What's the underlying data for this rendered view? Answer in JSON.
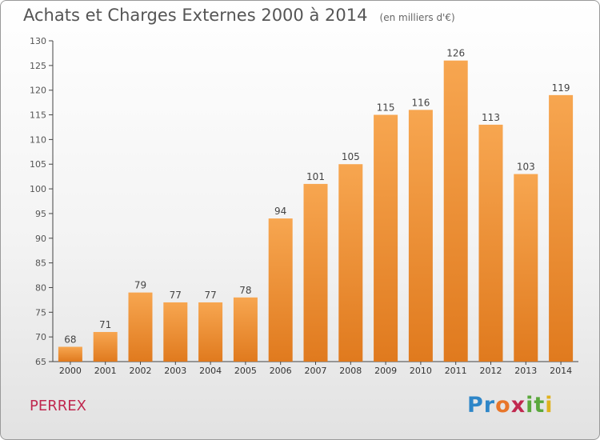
{
  "header": {
    "title": "Achats et Charges Externes 2000 à 2014",
    "subtitle": "(en milliers d'€)"
  },
  "commune": "PERREX",
  "brand": {
    "letters": [
      "P",
      "r",
      "o",
      "x",
      "i",
      "t",
      "i"
    ],
    "colors": [
      "#2e86c8",
      "#2e86c8",
      "#e8762a",
      "#c0284f",
      "#5aa83c",
      "#5aa83c",
      "#e0b21e"
    ]
  },
  "colors": {
    "bar_light": "#f7a650",
    "bar_dark": "#e07a1e",
    "axis": "#444444",
    "text": "#555555",
    "brand_red": "#c0284f"
  },
  "chart_data": {
    "type": "bar",
    "title": "Achats et Charges Externes 2000 à 2014",
    "subtitle": "(en milliers d'€)",
    "categories": [
      "2000",
      "2001",
      "2002",
      "2003",
      "2004",
      "2005",
      "2006",
      "2007",
      "2008",
      "2009",
      "2010",
      "2011",
      "2012",
      "2013",
      "2014"
    ],
    "values": [
      68,
      71,
      79,
      77,
      77,
      78,
      94,
      101,
      105,
      115,
      116,
      126,
      113,
      103,
      119
    ],
    "ylim": [
      65,
      130
    ],
    "yticks": [
      65,
      70,
      75,
      80,
      85,
      90,
      95,
      100,
      105,
      110,
      115,
      120,
      125,
      130
    ],
    "xlabel": "",
    "ylabel": "",
    "grid": false,
    "data_labels": true
  }
}
